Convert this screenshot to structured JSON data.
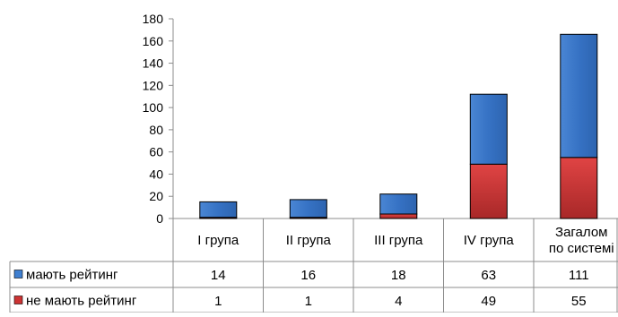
{
  "chart_data": {
    "type": "bar",
    "stacked": true,
    "title": "",
    "xlabel": "",
    "ylabel": "",
    "ylim": [
      0,
      180
    ],
    "yticks": [
      0,
      20,
      40,
      60,
      80,
      100,
      120,
      140,
      160,
      180
    ],
    "grid": false,
    "legend": "table-rows",
    "categories": [
      "I група",
      "II група",
      "III група",
      "IV група",
      "Загалом по системі"
    ],
    "category_lines": [
      [
        "I група"
      ],
      [
        "II група"
      ],
      [
        "III група"
      ],
      [
        "IV група"
      ],
      [
        "Загалом",
        "по системі"
      ]
    ],
    "series": [
      {
        "name": "не мають рейтинг",
        "values": [
          1,
          1,
          4,
          49,
          55
        ],
        "color": "#cc3333"
      },
      {
        "name": "мають рейтинг",
        "values": [
          14,
          16,
          18,
          63,
          111
        ],
        "color": "#3f7fd0"
      }
    ],
    "table_rows": [
      {
        "label": "мають рейтинг",
        "values": [
          "14",
          "16",
          "18",
          "63",
          "111"
        ],
        "color": "#3f7fd0"
      },
      {
        "label": "не мають рейтинг",
        "values": [
          "1",
          "1",
          "4",
          "49",
          "55"
        ],
        "color": "#cc3333"
      }
    ]
  }
}
